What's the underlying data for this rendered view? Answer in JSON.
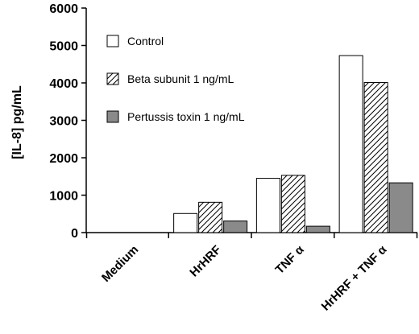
{
  "chart_data": {
    "type": "bar",
    "title": "",
    "xlabel": "",
    "ylabel": "[IL-8]  pg/mL",
    "ylim": [
      0,
      6000
    ],
    "yticks": [
      "0",
      "1000",
      "2000",
      "3000",
      "4000",
      "5000",
      "6000"
    ],
    "grid": false,
    "legend_position": "top-left",
    "categories": [
      "Medium",
      "HrHRF",
      "TNF α",
      "HrHRF + TNF  α"
    ],
    "series": [
      {
        "name": "Control",
        "values": [
          0,
          510,
          1450,
          4730
        ],
        "fill": "#ffffff",
        "pattern": "none"
      },
      {
        "name": "Beta subunit 1 ng/mL",
        "values": [
          0,
          810,
          1530,
          4010
        ],
        "fill": "#ffffff",
        "pattern": "hatch"
      },
      {
        "name": "Pertussis toxin 1 ng/mL",
        "values": [
          0,
          310,
          170,
          1330
        ],
        "fill": "#8a8a8a",
        "pattern": "solid"
      }
    ]
  }
}
